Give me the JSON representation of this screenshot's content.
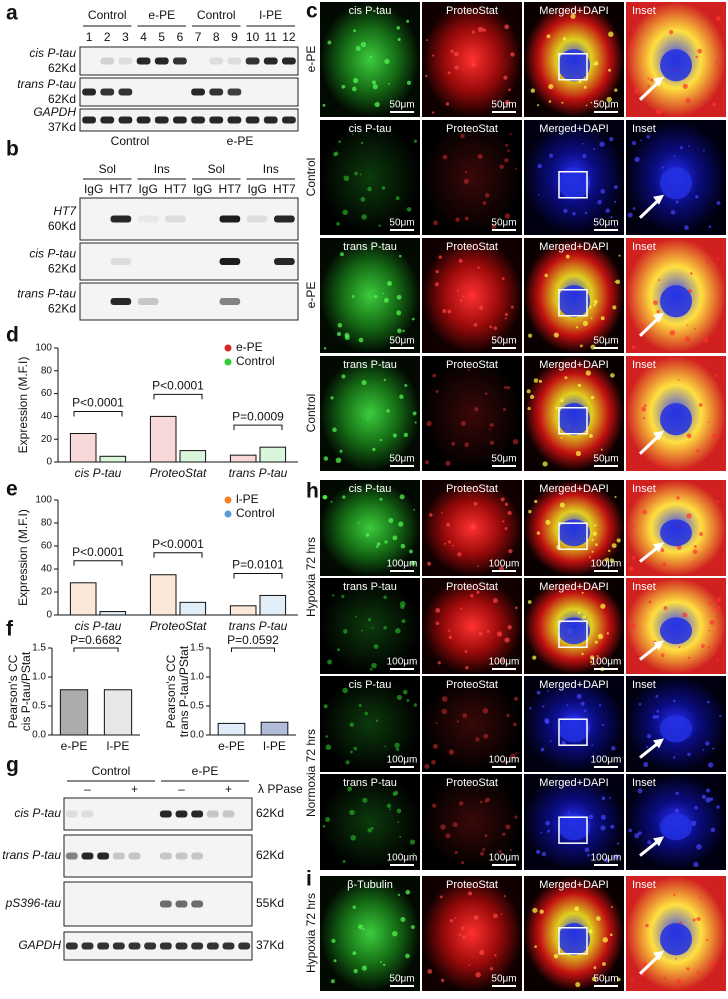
{
  "panels": {
    "a": {
      "label": "a",
      "groups": [
        "Control",
        "e-PE",
        "Control",
        "l-PE"
      ],
      "lanes": [
        1,
        2,
        3,
        4,
        5,
        6,
        7,
        8,
        9,
        10,
        11,
        12
      ],
      "rows": [
        {
          "name": "cis P-tau",
          "size": "62Kd"
        },
        {
          "name": "trans P-tau",
          "size": "62Kd"
        },
        {
          "name": "GAPDH",
          "size": "37Kd"
        }
      ],
      "footer": [
        "Control",
        "e-PE"
      ]
    },
    "b": {
      "label": "b",
      "fractions": [
        "Sol",
        "Ins",
        "Sol",
        "Ins"
      ],
      "lanes": [
        "IgG",
        "HT7",
        "IgG",
        "HT7",
        "IgG",
        "HT7",
        "IgG",
        "HT7"
      ],
      "rows": [
        {
          "name": "HT7",
          "size": "60Kd"
        },
        {
          "name": "cis P-tau",
          "size": "62Kd"
        },
        {
          "name": "trans P-tau",
          "size": "62Kd"
        }
      ]
    },
    "c": {
      "label": "c",
      "scale": "50μm",
      "rows": [
        {
          "condition": "e-PE",
          "columns": [
            "cis P-tau",
            "ProteoStat",
            "Merged+DAPI",
            "Inset"
          ]
        },
        {
          "condition": "Control",
          "columns": [
            "cis P-tau",
            "ProteoStat",
            "Merged+DAPI",
            "Inset"
          ]
        },
        {
          "condition": "e-PE",
          "columns": [
            "trans P-tau",
            "ProteoStat",
            "Merged+DAPI",
            "Inset"
          ]
        },
        {
          "condition": "Control",
          "columns": [
            "trans P-tau",
            "ProteoStat",
            "Merged+DAPI",
            "Inset"
          ]
        }
      ]
    },
    "d": {
      "label": "d"
    },
    "e": {
      "label": "e"
    },
    "f": {
      "label": "f"
    },
    "g": {
      "label": "g",
      "groups": [
        "Control",
        "e-PE"
      ],
      "treatment": [
        "–",
        "+",
        "–",
        "+"
      ],
      "enzyme": "λ PPase",
      "rows": [
        {
          "name": "cis P-tau",
          "size": "62Kd"
        },
        {
          "name": "trans P-tau",
          "size": "62Kd"
        },
        {
          "name": "pS396-tau",
          "size": "55Kd"
        },
        {
          "name": "GAPDH",
          "size": "37Kd"
        }
      ]
    },
    "h": {
      "label": "h",
      "scale": "100μm",
      "conditions": [
        "Hypoxia 72 hrs",
        "Normoxia 72 hrs"
      ],
      "rows": [
        {
          "columns": [
            "cis P-tau",
            "ProteoStat",
            "Merged+DAPI",
            "Inset"
          ]
        },
        {
          "columns": [
            "trans P-tau",
            "ProteoStat",
            "Merged+DAPI",
            "Inset"
          ]
        },
        {
          "columns": [
            "cis P-tau",
            "ProteoStat",
            "Merged+DAPI",
            "Inset"
          ]
        },
        {
          "columns": [
            "trans P-tau",
            "ProteoStat",
            "Merged+DAPI",
            "Inset"
          ]
        }
      ]
    },
    "i": {
      "label": "i",
      "scale": "50μm",
      "condition": "Hypoxia 72 hrs",
      "rows": [
        {
          "columns": [
            "β-Tubulin",
            "ProteoStat",
            "Merged+DAPI",
            "Inset"
          ]
        }
      ]
    }
  },
  "chart_data": [
    {
      "type": "bar",
      "ylabel": "Expression (M.F.I)",
      "categories": [
        "cis P-tau",
        "ProteoStat",
        "trans P-tau"
      ],
      "series": [
        {
          "name": "e-PE",
          "color": "#d62728",
          "values": [
            25,
            40,
            6
          ]
        },
        {
          "name": "Control",
          "color": "#33cc33",
          "values": [
            5,
            10,
            13
          ]
        }
      ],
      "ylim": [
        0,
        100
      ],
      "yticks": [
        0,
        20,
        40,
        60,
        80,
        100
      ],
      "annotations": [
        "P<0.0001",
        "P<0.0001",
        "P=0.0009"
      ],
      "legend": "upper right"
    },
    {
      "type": "bar",
      "ylabel": "Expression (M.F.I)",
      "categories": [
        "cis P-tau",
        "ProteoStat",
        "trans P-tau"
      ],
      "series": [
        {
          "name": "l-PE",
          "color": "#f07f2a",
          "values": [
            28,
            35,
            8
          ]
        },
        {
          "name": "Control",
          "color": "#5b9bd5",
          "values": [
            3,
            11,
            17
          ]
        }
      ],
      "ylim": [
        0,
        100
      ],
      "yticks": [
        0,
        20,
        40,
        60,
        80,
        100
      ],
      "annotations": [
        "P<0.0001",
        "P<0.0001",
        "P=0.0101"
      ],
      "legend": "upper right"
    },
    {
      "type": "bar",
      "ylabel": [
        "Pearson's CC",
        "cis P-tau/PStat"
      ],
      "categories": [
        "e-PE",
        "l-PE"
      ],
      "values": [
        0.78,
        0.78
      ],
      "colors": [
        "#111111",
        "#bbbbbb"
      ],
      "ylim": [
        0,
        1.5
      ],
      "yticks": [
        {
          "value": 0,
          "label": "0.0"
        },
        0.5,
        {
          "value": 1,
          "label": "1.0"
        },
        1.5
      ],
      "annotations": [
        "P=0.6682"
      ]
    },
    {
      "type": "bar",
      "ylabel": [
        "Pearson's CC",
        "trans P-tau/PStat"
      ],
      "categories": [
        "e-PE",
        "l-PE"
      ],
      "values": [
        0.2,
        0.22
      ],
      "colors": [
        "#a6c8e8",
        "#1f3f99"
      ],
      "ylim": [
        0,
        1.5
      ],
      "yticks": [
        {
          "value": 0,
          "label": "0.0"
        },
        0.5,
        {
          "value": 1,
          "label": "1.0"
        },
        1.5
      ],
      "annotations": [
        "P=0.0592"
      ]
    }
  ]
}
